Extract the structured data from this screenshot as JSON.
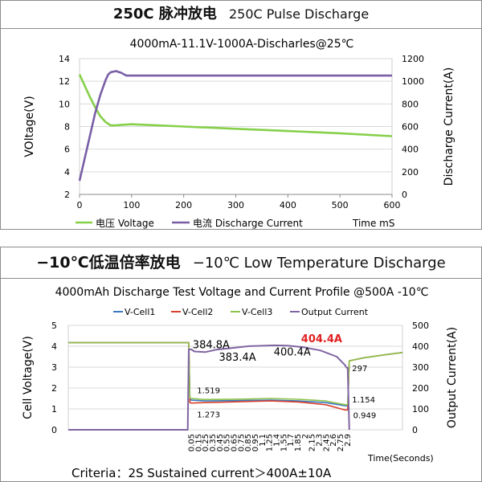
{
  "colors": {
    "voltage": "#86d04a",
    "current": "#7a5fa6",
    "cell1": "#3a78c2",
    "cell2": "#d9412c",
    "cell3": "#8fc24a",
    "output": "#8064a2",
    "highlight": "#e02020"
  },
  "panel1": {
    "title_strong": "250C 脉冲放电",
    "title_light": "250C Pulse Discharge"
  },
  "panel2": {
    "title_strong": "−10℃低温倍率放电",
    "title_light": "−10℃ Low Temperature Discharge"
  },
  "chart_data": [
    {
      "type": "line",
      "title": "4000mA-11.1V-1000A-Discharles@25℃",
      "ylabel": "VOltage(V)",
      "y2label": "Discharge Current(A)",
      "xlabel": "Time mS",
      "xlim": [
        0,
        600
      ],
      "ylim": [
        2,
        14
      ],
      "y2lim": [
        0,
        1200
      ],
      "x_ticks": [
        "0",
        "100",
        "200",
        "300",
        "400",
        "500",
        "600"
      ],
      "y_ticks": [
        "2",
        "4",
        "6",
        "8",
        "10",
        "12",
        "14"
      ],
      "y2_ticks": [
        "0",
        "200",
        "400",
        "600",
        "800",
        "1000",
        "1200"
      ],
      "legend_position": "bottom",
      "series": [
        {
          "name": "电压  Voltage",
          "axis": "left",
          "x": [
            0,
            10,
            20,
            30,
            40,
            50,
            60,
            70,
            80,
            100,
            150,
            200,
            300,
            400,
            500,
            600
          ],
          "values": [
            12.6,
            11.6,
            10.6,
            9.7,
            8.9,
            8.4,
            8.1,
            8.1,
            8.15,
            8.2,
            8.1,
            8.0,
            7.8,
            7.6,
            7.4,
            7.15
          ]
        },
        {
          "name": "电流  Discharge Current",
          "axis": "right",
          "x": [
            0,
            10,
            20,
            30,
            40,
            50,
            55,
            60,
            70,
            80,
            90,
            100,
            150,
            200,
            300,
            400,
            500,
            600
          ],
          "values": [
            120,
            320,
            520,
            720,
            880,
            1010,
            1060,
            1080,
            1090,
            1075,
            1050,
            1050,
            1050,
            1050,
            1050,
            1050,
            1050,
            1050
          ]
        }
      ]
    },
    {
      "type": "line",
      "title": "4000mAh  Discharge Test Voltage and Current Profile @500A -10℃",
      "ylabel": "Cell Voltage(V)",
      "y2label": "Output Current(A)",
      "xlabel": "Time(Seconds)",
      "xlim": [
        -2.2,
        3.9
      ],
      "ylim": [
        0,
        5
      ],
      "y2lim": [
        0,
        500
      ],
      "x_ticks": [
        "0.05",
        "0.15",
        "0.25",
        "0.35",
        "0.45",
        "0.55",
        "0.65",
        "0.75",
        "0.85",
        "0.95",
        "1.1",
        "1.25",
        "1.4",
        "1.55",
        "1.7",
        "1.85",
        "2",
        "2.15",
        "2.3",
        "2.45",
        "2.6",
        "2.75",
        "2.9"
      ],
      "y_ticks": [
        "0",
        "1",
        "2",
        "3",
        "4",
        "5"
      ],
      "y2_ticks": [
        "0",
        "100",
        "200",
        "300",
        "400",
        "500"
      ],
      "legend_position": "top",
      "series": [
        {
          "name": "V-Cell1",
          "axis": "left",
          "x": [
            -2.2,
            0.0,
            0.02,
            0.05,
            0.3,
            1.0,
            1.5,
            2.0,
            2.5,
            2.85,
            2.9,
            2.93,
            3.2,
            3.6,
            3.9
          ],
          "values": [
            4.17,
            4.17,
            1.45,
            1.42,
            1.38,
            1.4,
            1.42,
            1.38,
            1.3,
            1.15,
            1.15,
            3.3,
            3.45,
            3.6,
            3.7
          ]
        },
        {
          "name": "V-Cell2",
          "axis": "left",
          "x": [
            -2.2,
            0.0,
            0.02,
            0.05,
            0.3,
            1.0,
            1.5,
            2.0,
            2.5,
            2.85,
            2.9,
            2.93,
            3.2,
            3.6,
            3.9
          ],
          "values": [
            4.17,
            4.17,
            1.3,
            1.28,
            1.3,
            1.35,
            1.38,
            1.33,
            1.2,
            0.95,
            0.95,
            3.3,
            3.45,
            3.6,
            3.7
          ]
        },
        {
          "name": "V-Cell3",
          "axis": "left",
          "x": [
            -2.2,
            0.0,
            0.02,
            0.05,
            0.3,
            1.0,
            1.5,
            2.0,
            2.5,
            2.85,
            2.9,
            2.93,
            3.2,
            3.6,
            3.9
          ],
          "values": [
            4.17,
            4.17,
            1.52,
            1.5,
            1.45,
            1.47,
            1.5,
            1.46,
            1.38,
            1.2,
            1.2,
            3.3,
            3.45,
            3.6,
            3.7
          ]
        },
        {
          "name": "Output Current",
          "axis": "right",
          "x": [
            -2.2,
            -0.02,
            0.0,
            0.05,
            0.1,
            0.3,
            0.5,
            0.8,
            1.1,
            1.3,
            1.55,
            1.8,
            2.1,
            2.4,
            2.7,
            2.85,
            2.88,
            2.9,
            2.93
          ],
          "values": [
            0,
            0,
            385,
            384.8,
            375,
            372,
            383.4,
            392,
            400.4,
            402,
            404.4,
            403,
            395,
            380,
            350,
            310,
            297,
            297,
            0
          ]
        }
      ],
      "annotations": [
        {
          "text": "384.8A",
          "x": 0.07,
          "y2": 390,
          "highlight": false
        },
        {
          "text": "383.4A",
          "x": 0.55,
          "y2": 330,
          "highlight": false
        },
        {
          "text": "400.4A",
          "x": 1.55,
          "y2": 355,
          "highlight": false
        },
        {
          "text": "404.4A",
          "x": 2.05,
          "y2": 420,
          "highlight": true
        },
        {
          "text": "1.519",
          "x": 0.15,
          "y": 1.75,
          "highlight": false
        },
        {
          "text": "1.273",
          "x": 0.15,
          "y": 0.6,
          "highlight": false
        },
        {
          "text": "297",
          "x": 2.98,
          "y2": 280,
          "highlight": false
        },
        {
          "text": "1.154",
          "x": 2.98,
          "y": 1.3,
          "highlight": false
        },
        {
          "text": "0.949",
          "x": 3.0,
          "y": 0.55,
          "highlight": false
        }
      ],
      "footnote": "Criteria：2S Sustained current＞400A±10A"
    }
  ]
}
